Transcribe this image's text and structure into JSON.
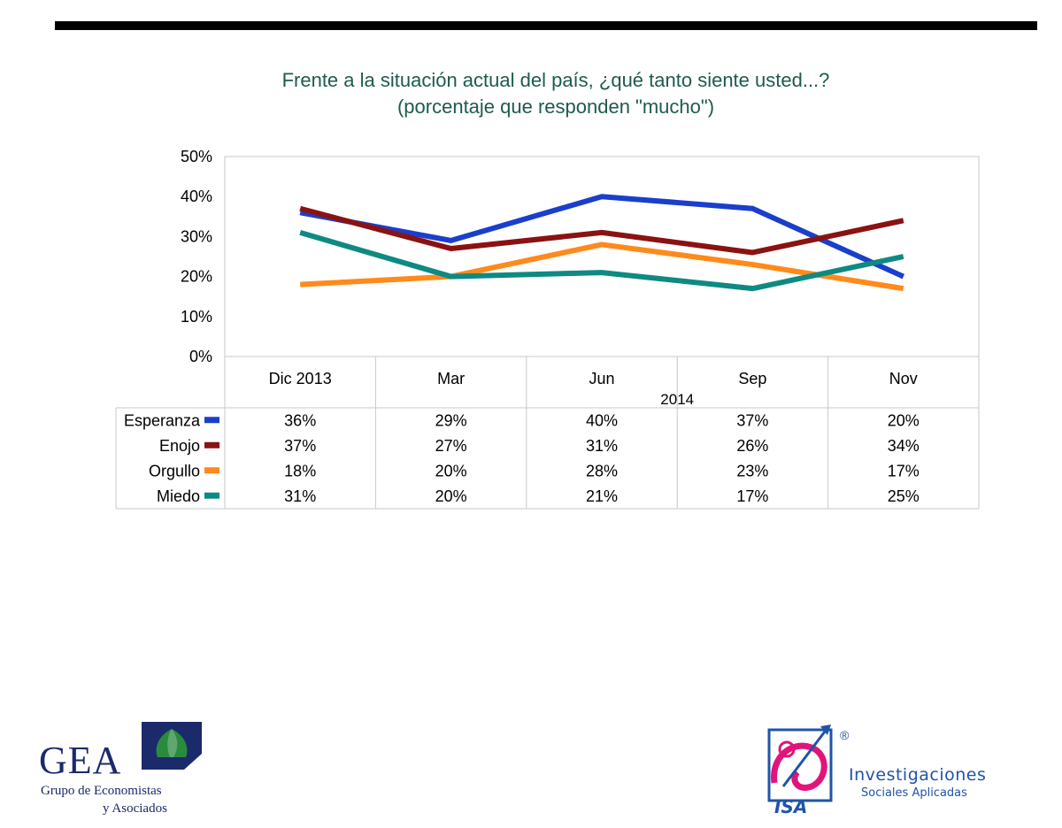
{
  "chart_data": {
    "type": "line",
    "title": "Frente a la situación actual del país, ¿qué tanto siente usted...?",
    "subtitle": "(porcentaje que responden \"mucho\")",
    "categories": [
      "Dic 2013",
      "Mar",
      "Jun",
      "Sep",
      "Nov"
    ],
    "category_group_label": "2014",
    "y_ticks": [
      "50%",
      "40%",
      "30%",
      "20%",
      "10%",
      "0%"
    ],
    "ylim": [
      0,
      50
    ],
    "y_unit": "%",
    "grid": false,
    "legend_placement": "data-table-left",
    "series": [
      {
        "name": "Esperanza",
        "color": "#1a3fcc",
        "values": [
          36,
          29,
          40,
          37,
          20
        ],
        "labels": [
          "36%",
          "29%",
          "40%",
          "37%",
          "20%"
        ]
      },
      {
        "name": "Enojo",
        "color": "#8b1212",
        "values": [
          37,
          27,
          31,
          26,
          34
        ],
        "labels": [
          "37%",
          "27%",
          "31%",
          "26%",
          "34%"
        ]
      },
      {
        "name": "Orgullo",
        "color": "#ff8a1c",
        "values": [
          18,
          20,
          28,
          23,
          17
        ],
        "labels": [
          "18%",
          "20%",
          "28%",
          "23%",
          "17%"
        ]
      },
      {
        "name": "Miedo",
        "color": "#0e8a82",
        "values": [
          31,
          20,
          21,
          17,
          25
        ],
        "labels": [
          "31%",
          "20%",
          "21%",
          "17%",
          "25%"
        ]
      }
    ]
  },
  "logos": {
    "gea": {
      "name": "GEA",
      "line1": "Grupo de Economistas",
      "line2": "y Asociados"
    },
    "isa": {
      "name": "ISA",
      "line1": "Investigaciones",
      "line2": "Sociales Aplicadas",
      "reg": "®"
    }
  }
}
